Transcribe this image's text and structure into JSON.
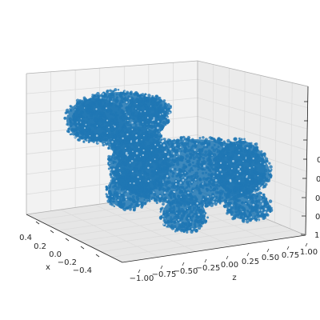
{
  "chart_data": {
    "type": "scatter",
    "projection": "3d",
    "title": "",
    "series": [
      {
        "color": "#1f77b4",
        "marker": "o",
        "alpha": 0.8
      }
    ],
    "axes": {
      "x": {
        "label": "x",
        "ticks": [
          0.4,
          0.2,
          0.0,
          -0.2,
          -0.4
        ],
        "tick_labels": [
          "0.4",
          "0.2",
          "0.0",
          "−0.2",
          "−0.4"
        ]
      },
      "z": {
        "label": "z",
        "ticks": [
          -1.0,
          -0.75,
          -0.5,
          -0.25,
          0.0,
          0.25,
          0.5,
          0.75,
          1.0
        ],
        "tick_labels": [
          "−1.00",
          "−0.75",
          "−0.50",
          "−0.25",
          "0.00",
          "0.25",
          "0.50",
          "0.75",
          "1.00"
        ]
      },
      "y": {
        "label": "",
        "tick_labels": [
          "",
          "",
          "",
          "0",
          "0",
          "0",
          "0",
          "1"
        ]
      }
    },
    "grid": true,
    "pane_color": "#f2f2f2",
    "grid_color": "#dcdcdc",
    "edge_color": "#b0b0b0",
    "tick_color": "#262626"
  }
}
